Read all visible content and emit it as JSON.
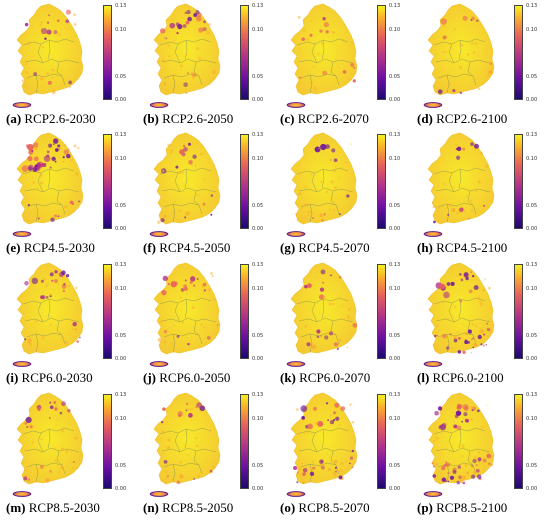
{
  "colorbar": {
    "ticks": [
      "0.13",
      "0.10",
      "0.05",
      "0.00"
    ]
  },
  "colormap": [
    "#1c0a6e",
    "#6a0fa3",
    "#b0328a",
    "#e8625a",
    "#f9ab2f",
    "#f6f01f"
  ],
  "panels": [
    {
      "id": "(a)",
      "label": "RCP2.6-2030"
    },
    {
      "id": "(b)",
      "label": "RCP2.6-2050"
    },
    {
      "id": "(c)",
      "label": "RCP2.6-2070"
    },
    {
      "id": "(d)",
      "label": "RCP2.6-2100"
    },
    {
      "id": "(e)",
      "label": "RCP4.5-2030"
    },
    {
      "id": "(f)",
      "label": "RCP4.5-2050"
    },
    {
      "id": "(g)",
      "label": "RCP4.5-2070"
    },
    {
      "id": "(h)",
      "label": "RCP4.5-2100"
    },
    {
      "id": "(i)",
      "label": "RCP6.0-2030"
    },
    {
      "id": "(j)",
      "label": "RCP6.0-2050"
    },
    {
      "id": "(k)",
      "label": "RCP6.0-2070"
    },
    {
      "id": "(l)",
      "label": "RCP6.0-2100"
    },
    {
      "id": "(m)",
      "label": "RCP8.5-2030"
    },
    {
      "id": "(n)",
      "label": "RCP8.5-2050"
    },
    {
      "id": "(o)",
      "label": "RCP8.5-2070"
    },
    {
      "id": "(p)",
      "label": "RCP8.5-2100"
    }
  ]
}
